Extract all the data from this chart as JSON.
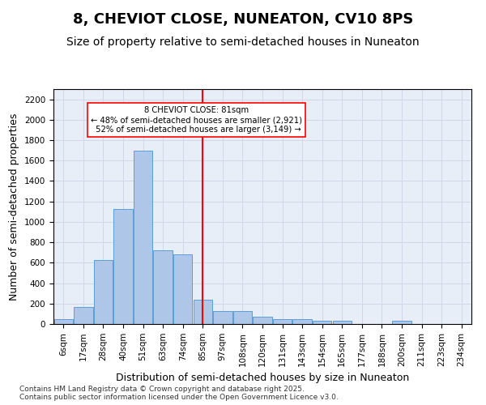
{
  "title": "8, CHEVIOT CLOSE, NUNEATON, CV10 8PS",
  "subtitle": "Size of property relative to semi-detached houses in Nuneaton",
  "xlabel": "Distribution of semi-detached houses by size in Nuneaton",
  "ylabel": "Number of semi-detached properties",
  "categories": [
    "6sqm",
    "17sqm",
    "28sqm",
    "40sqm",
    "51sqm",
    "63sqm",
    "74sqm",
    "85sqm",
    "97sqm",
    "108sqm",
    "120sqm",
    "131sqm",
    "143sqm",
    "154sqm",
    "165sqm",
    "177sqm",
    "188sqm",
    "200sqm",
    "211sqm",
    "223sqm",
    "234sqm"
  ],
  "values": [
    50,
    170,
    630,
    1130,
    1700,
    720,
    680,
    240,
    130,
    130,
    70,
    50,
    50,
    30,
    30,
    0,
    0,
    30,
    0,
    0,
    0
  ],
  "bar_color": "#aec6e8",
  "bar_edge_color": "#5a9fd4",
  "vline_color": "red",
  "vline_idx": 7,
  "annotation_text": "8 CHEVIOT CLOSE: 81sqm\n← 48% of semi-detached houses are smaller (2,921)\n 52% of semi-detached houses are larger (3,149) →",
  "annotation_box_color": "white",
  "annotation_box_edge": "red",
  "ylim": [
    0,
    2300
  ],
  "yticks": [
    0,
    200,
    400,
    600,
    800,
    1000,
    1200,
    1400,
    1600,
    1800,
    2000,
    2200
  ],
  "grid_color": "#d0d8e8",
  "background_color": "#e8eef8",
  "footer": "Contains HM Land Registry data © Crown copyright and database right 2025.\nContains public sector information licensed under the Open Government Licence v3.0.",
  "title_fontsize": 13,
  "subtitle_fontsize": 10,
  "axis_label_fontsize": 9,
  "tick_fontsize": 7.5,
  "footer_fontsize": 6.5
}
